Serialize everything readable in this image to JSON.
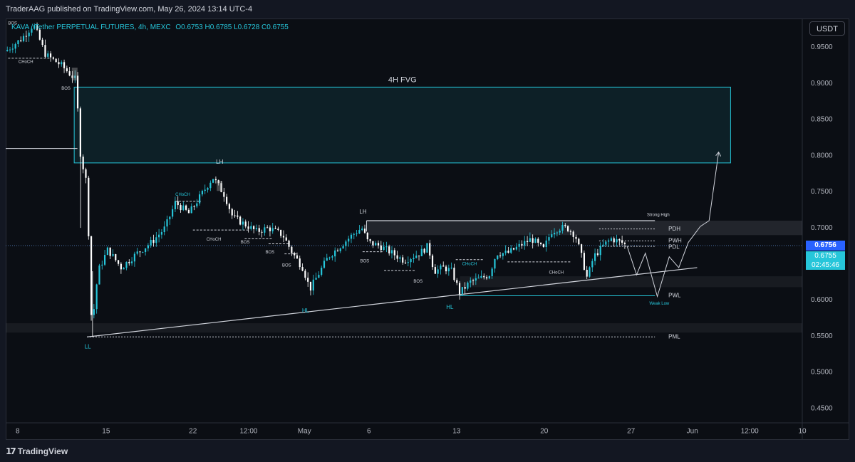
{
  "header": {
    "published": "TraderAAG published on TradingView.com, May 26, 2024 13:14 UTC-4",
    "symbol": "KAVA / Tether PERPETUAL FUTURES, 4h, MEXC",
    "ohlc": "O0.6753 H0.6785 L0.6728 C0.6755",
    "currency_button": "USDT"
  },
  "price_tags": {
    "last": "0.6756",
    "close": "0.6755",
    "countdown": "02:45:46"
  },
  "footer": {
    "brand": "TradingView"
  },
  "colors": {
    "background": "#0b0e14",
    "candle_up": "#26c6da",
    "candle_down": "#ffffff",
    "fvg": "#26c6da",
    "accent": "#2962ff"
  },
  "chart_data": {
    "type": "candlestick",
    "title": "",
    "ylim": [
      0.43,
      0.99
    ],
    "xlim": [
      0,
      100
    ],
    "y_ticks": [
      "0.9500",
      "0.9000",
      "0.8500",
      "0.8000",
      "0.7500",
      "0.7000",
      "0.6500",
      "0.6000",
      "0.5500",
      "0.5000",
      "0.4500"
    ],
    "y_tick_values": [
      0.95,
      0.9,
      0.85,
      0.8,
      0.75,
      0.7,
      0.65,
      0.6,
      0.55,
      0.5,
      0.45
    ],
    "x_ticks": [
      {
        "label": "8",
        "x": 1.5
      },
      {
        "label": "15",
        "x": 12.6
      },
      {
        "label": "22",
        "x": 23.5
      },
      {
        "label": "12:00",
        "x": 30.5
      },
      {
        "label": "May",
        "x": 37.5
      },
      {
        "label": "6",
        "x": 45.6
      },
      {
        "label": "13",
        "x": 56.6
      },
      {
        "label": "20",
        "x": 67.6
      },
      {
        "label": "27",
        "x": 78.5
      },
      {
        "label": "Jun",
        "x": 86.2
      },
      {
        "label": "12:00",
        "x": 93.4
      },
      {
        "label": "10",
        "x": 100
      }
    ],
    "path_keypoints": [
      [
        0,
        0.945
      ],
      [
        2,
        0.962
      ],
      [
        3.5,
        0.982
      ],
      [
        5,
        0.94
      ],
      [
        7,
        0.925
      ],
      [
        8.8,
        0.905
      ],
      [
        9.4,
        0.8
      ],
      [
        10.2,
        0.76
      ],
      [
        10.8,
        0.56
      ],
      [
        11.6,
        0.64
      ],
      [
        12.8,
        0.67
      ],
      [
        14.5,
        0.645
      ],
      [
        16.5,
        0.665
      ],
      [
        18.3,
        0.68
      ],
      [
        20,
        0.7
      ],
      [
        21.3,
        0.735
      ],
      [
        23,
        0.72
      ],
      [
        24.5,
        0.745
      ],
      [
        26,
        0.77
      ],
      [
        27.5,
        0.745
      ],
      [
        28.5,
        0.715
      ],
      [
        30,
        0.705
      ],
      [
        31.5,
        0.695
      ],
      [
        33,
        0.7
      ],
      [
        34.8,
        0.69
      ],
      [
        36,
        0.665
      ],
      [
        37.3,
        0.645
      ],
      [
        38.2,
        0.615
      ],
      [
        39.2,
        0.635
      ],
      [
        40.5,
        0.66
      ],
      [
        42,
        0.675
      ],
      [
        43.5,
        0.69
      ],
      [
        44.7,
        0.7
      ],
      [
        45.5,
        0.68
      ],
      [
        47,
        0.675
      ],
      [
        48.5,
        0.665
      ],
      [
        50,
        0.655
      ],
      [
        52,
        0.665
      ],
      [
        53,
        0.675
      ],
      [
        53.8,
        0.64
      ],
      [
        55,
        0.645
      ],
      [
        56,
        0.64
      ],
      [
        57,
        0.61
      ],
      [
        58.3,
        0.625
      ],
      [
        59.6,
        0.63
      ],
      [
        60.7,
        0.635
      ],
      [
        61.6,
        0.665
      ],
      [
        63,
        0.665
      ],
      [
        64.5,
        0.675
      ],
      [
        66,
        0.685
      ],
      [
        67.5,
        0.67
      ],
      [
        68.5,
        0.695
      ],
      [
        69.5,
        0.7
      ],
      [
        70.5,
        0.7
      ],
      [
        71.5,
        0.69
      ],
      [
        72.3,
        0.66
      ],
      [
        73,
        0.63
      ],
      [
        73.8,
        0.66
      ],
      [
        75,
        0.675
      ],
      [
        76,
        0.685
      ],
      [
        77.3,
        0.68
      ],
      [
        78,
        0.675
      ]
    ],
    "projection": [
      [
        78,
        0.675
      ],
      [
        79.2,
        0.635
      ],
      [
        80.3,
        0.665
      ],
      [
        81.8,
        0.605
      ],
      [
        83.3,
        0.66
      ],
      [
        84.5,
        0.645
      ],
      [
        85.7,
        0.68
      ],
      [
        87.2,
        0.702
      ],
      [
        88.3,
        0.71
      ],
      [
        89.5,
        0.805
      ]
    ],
    "fvg": {
      "x0": 8.6,
      "x1": 91,
      "y0": 0.79,
      "y1": 0.895,
      "label": "4H FVG"
    },
    "horizontal_lines": [
      {
        "label": "PDH",
        "y": 0.6985,
        "x0": 74.5,
        "x1": 81.5,
        "style": "dotted"
      },
      {
        "label": "PWH",
        "y": 0.682,
        "x0": 74.5,
        "x1": 81.5,
        "style": "dotted"
      },
      {
        "label": "PDL",
        "y": 0.6745,
        "x0": 74.5,
        "x1": 81.5,
        "style": "dotted"
      },
      {
        "label": "PWL",
        "y": 0.606,
        "x0": 57,
        "x1": 81.5,
        "style": "solid"
      },
      {
        "label": "PML",
        "y": 0.549,
        "x0": 10.2,
        "x1": 81.5,
        "style": "dotted"
      }
    ],
    "strong_high": {
      "label": "Strong High",
      "y": 0.71,
      "x0": 45.3,
      "x1": 81.5
    },
    "trendline": {
      "x0": 10.2,
      "y0": 0.549,
      "x1": 86.8,
      "y1": 0.645
    },
    "annotations": [
      {
        "text": "BOS",
        "x": 0.3,
        "y": 0.983
      },
      {
        "text": "CHoCH",
        "x": 1.6,
        "y": 0.93
      },
      {
        "text": "BOS",
        "x": 7.0,
        "y": 0.893
      },
      {
        "text": "LH",
        "x": 26.4,
        "y": 0.791
      },
      {
        "text": "CHoCH",
        "x": 21.3,
        "y": 0.746
      },
      {
        "text": "CHoCH",
        "x": 25.2,
        "y": 0.684
      },
      {
        "text": "BOS",
        "x": 29.5,
        "y": 0.68
      },
      {
        "text": "BOS",
        "x": 32.6,
        "y": 0.666
      },
      {
        "text": "BOS",
        "x": 34.7,
        "y": 0.648
      },
      {
        "text": "LH",
        "x": 44.4,
        "y": 0.722
      },
      {
        "text": "BOS",
        "x": 44.5,
        "y": 0.654
      },
      {
        "text": "BOS",
        "x": 51.2,
        "y": 0.626
      },
      {
        "text": "CHoCH",
        "x": 57.3,
        "y": 0.65
      },
      {
        "text": "CHoCH",
        "x": 68.2,
        "y": 0.638
      },
      {
        "text": "Strong High",
        "x": 80.5,
        "y": 0.718
      },
      {
        "text": "PDH",
        "x": 83.2,
        "y": 0.6985
      },
      {
        "text": "PWH",
        "x": 83.2,
        "y": 0.682
      },
      {
        "text": "PDL",
        "x": 83.2,
        "y": 0.673
      },
      {
        "text": "PWL",
        "x": 83.2,
        "y": 0.606
      },
      {
        "text": "Weak Low",
        "x": 80.8,
        "y": 0.595
      },
      {
        "text": "PML",
        "x": 83.2,
        "y": 0.549
      },
      {
        "text": "LL",
        "x": 9.9,
        "y": 0.535
      },
      {
        "text": "HL",
        "x": 37.2,
        "y": 0.585
      },
      {
        "text": "HL",
        "x": 55.3,
        "y": 0.59
      }
    ]
  }
}
